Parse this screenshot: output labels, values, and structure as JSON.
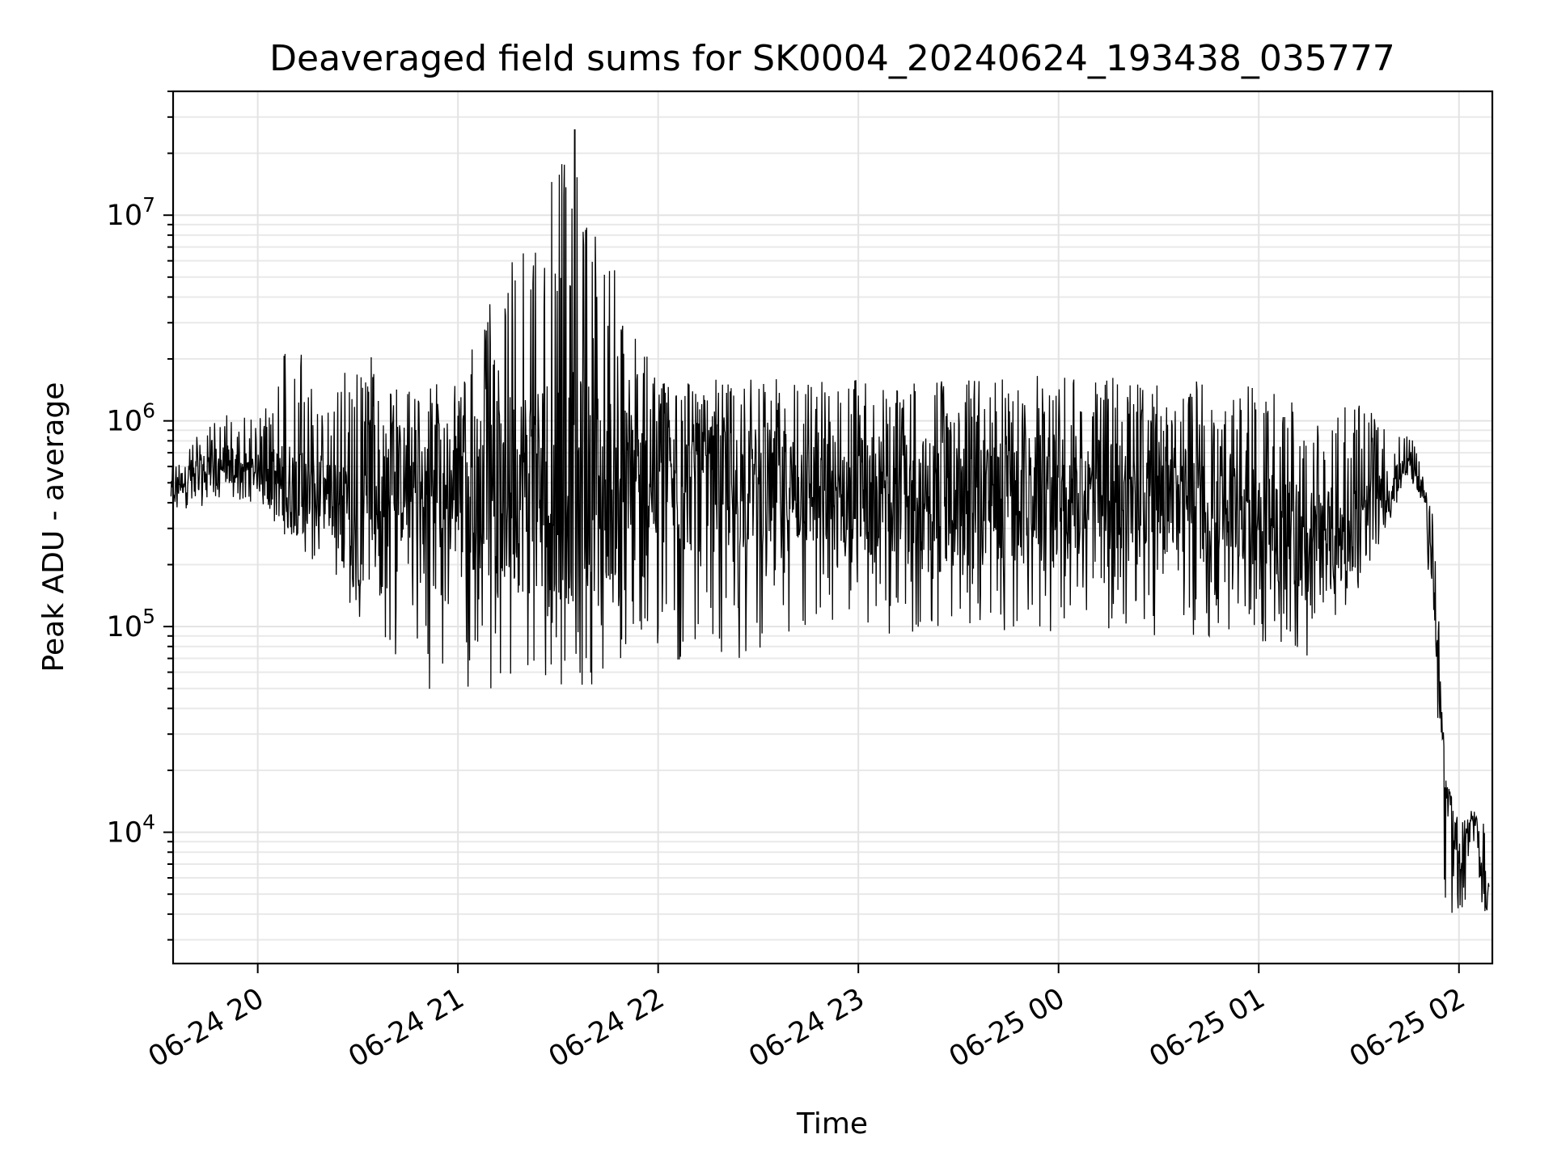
{
  "chart_data": {
    "type": "line",
    "title": "Deaveraged field sums for SK0004_20240624_193438_035777",
    "xlabel": "Time",
    "ylabel": "Peak ADU - average",
    "yscale": "log",
    "ylim": [
      2300,
      40000000
    ],
    "xlim": [
      "2024-06-24 19:34:38",
      "2024-06-25 02:10:00"
    ],
    "grid": true,
    "x_tick_labels": [
      "06-24 20",
      "06-24 21",
      "06-24 22",
      "06-24 23",
      "06-25 00",
      "06-25 01",
      "06-25 02"
    ],
    "y_tick_labels": [
      {
        "base": "10",
        "exp": "4"
      },
      {
        "base": "10",
        "exp": "5"
      },
      {
        "base": "10",
        "exp": "6"
      },
      {
        "base": "10",
        "exp": "7"
      }
    ],
    "series": [
      {
        "color": "#000000",
        "x": [
          "2024-06-24 19:34",
          "2024-06-24 19:40",
          "2024-06-24 19:50",
          "2024-06-24 20:00",
          "2024-06-24 20:10",
          "2024-06-24 20:20",
          "2024-06-24 20:30",
          "2024-06-24 20:40",
          "2024-06-24 20:50",
          "2024-06-24 21:00",
          "2024-06-24 21:30",
          "2024-06-24 22:00",
          "2024-06-24 22:30",
          "2024-06-24 23:00",
          "2024-06-24 23:30",
          "2024-06-25 00:00",
          "2024-06-25 00:30",
          "2024-06-25 01:00",
          "2024-06-25 01:15",
          "2024-06-25 01:30",
          "2024-06-25 01:38",
          "2024-06-25 01:45",
          "2024-06-25 01:50",
          "2024-06-25 01:53",
          "2024-06-25 01:56",
          "2024-06-25 02:00",
          "2024-06-25 02:05",
          "2024-06-25 02:09"
        ],
        "values": [
          450000,
          550000,
          620000,
          560000,
          470000,
          450000,
          300000,
          500000,
          480000,
          450000,
          480000,
          470000,
          470000,
          450000,
          440000,
          450000,
          420000,
          380000,
          250000,
          300000,
          450000,
          600000,
          450000,
          120000,
          15000,
          8000,
          10000,
          4500
        ],
        "max_values": [
          600000,
          800000,
          1100000,
          1000000,
          2900000,
          1000000,
          2500000,
          1500000,
          1550000,
          1600000,
          26000000,
          1650000,
          1600000,
          1650000,
          1600000,
          1700000,
          1600000,
          1550000,
          1200000,
          1300000,
          900000,
          850000,
          650000,
          300000,
          18000,
          12000,
          13000,
          10000
        ],
        "min_values": [
          350000,
          370000,
          420000,
          400000,
          250000,
          170000,
          110000,
          70000,
          50000,
          48000,
          48000,
          60000,
          70000,
          85000,
          90000,
          95000,
          90000,
          85000,
          70000,
          150000,
          300000,
          500000,
          350000,
          30000,
          4500,
          3600,
          5000,
          3500
        ]
      }
    ]
  }
}
